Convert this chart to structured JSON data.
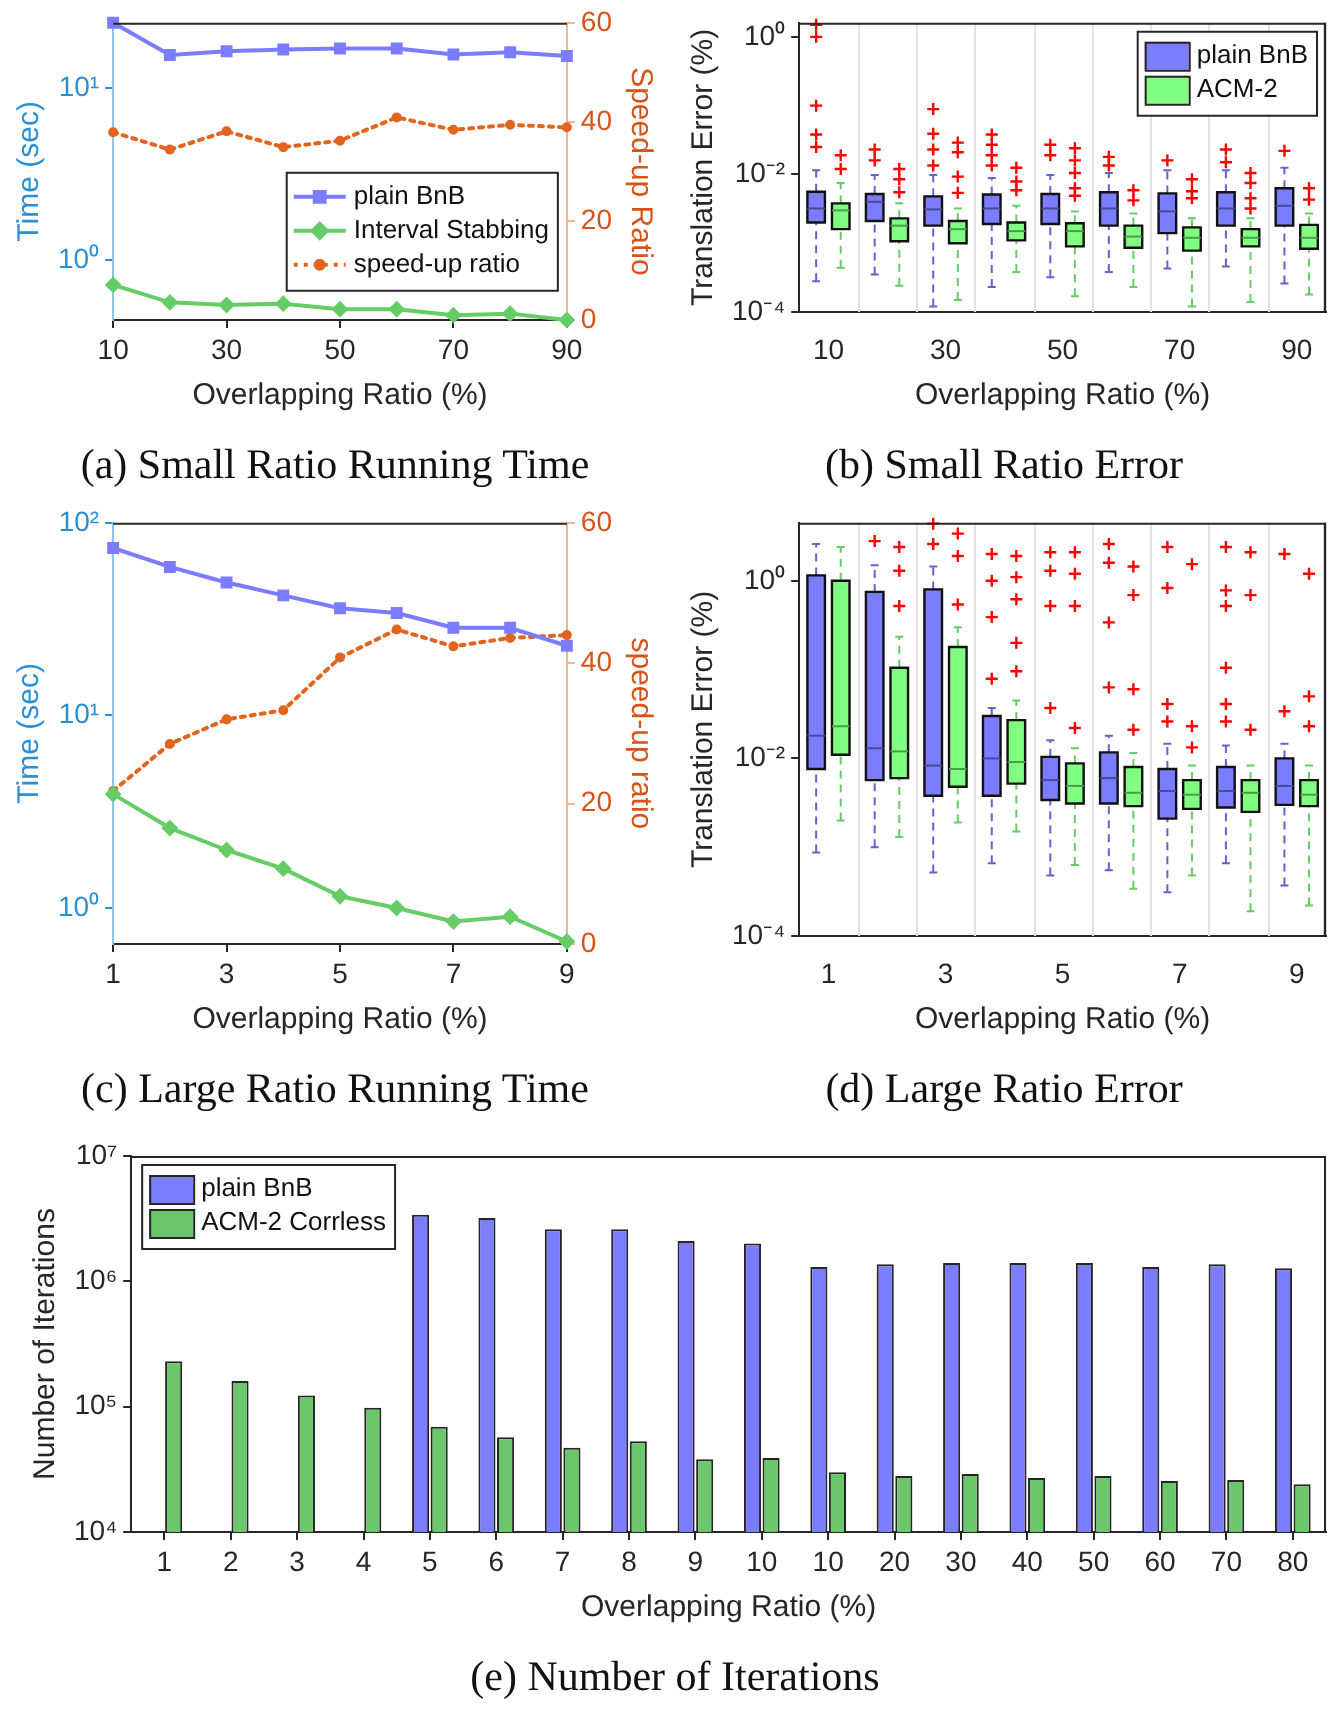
{
  "chart_data": [
    {
      "type": "line",
      "title": "(a) Small Ratio Running Time",
      "xlabel": "Overlapping Ratio (%)",
      "ylabel": "Time (sec)",
      "y2label": "Speed-up Ratio",
      "x": [
        10,
        20,
        30,
        40,
        50,
        60,
        70,
        80,
        90
      ],
      "xlim": [
        10,
        90
      ],
      "xticks": [
        10,
        30,
        50,
        70,
        90
      ],
      "log": "y",
      "ylim": [
        0.45,
        24
      ],
      "yticks": [
        {
          "value": 1,
          "label": "10⁰"
        },
        {
          "value": 10,
          "label": "10¹"
        }
      ],
      "y2lim": [
        0,
        60
      ],
      "y2ticks": [
        0,
        20,
        40,
        60
      ],
      "legend": "right",
      "series": [
        {
          "name": "plain BnB",
          "color": "#7c7cff",
          "marker": "square",
          "values": [
            24,
            15.6,
            16.4,
            16.8,
            17,
            17,
            15.7,
            16.2,
            15.4
          ]
        },
        {
          "name": "Interval Stabbing",
          "color": "#66cc66",
          "marker": "diamond",
          "values": [
            0.72,
            0.57,
            0.55,
            0.56,
            0.52,
            0.52,
            0.48,
            0.49,
            0.45
          ]
        },
        {
          "name": "speed-up ratio",
          "color": "#e2641f",
          "marker": "circle",
          "line_style": "dotted",
          "axis": "y2",
          "values": [
            37.9,
            34.4,
            38.1,
            34.9,
            36.2,
            40.9,
            38.4,
            39.4,
            38.9
          ]
        }
      ]
    },
    {
      "type": "box",
      "title": "(b) Small Ratio Error",
      "xlabel": "Overlapping Ratio (%)",
      "ylabel": "Translation Error (%)",
      "categories": [
        "10",
        null,
        "30",
        null,
        "50",
        null,
        "70",
        null,
        "90"
      ],
      "log": "y",
      "ylim": [
        0.0001,
        1.6
      ],
      "yticks": [
        {
          "value": 0.0001,
          "label": "10⁻⁴"
        },
        {
          "value": 0.01,
          "label": "10⁻²"
        },
        {
          "value": 1,
          "label": "10⁰"
        }
      ],
      "grid": "x",
      "legend": "top right",
      "series": [
        {
          "name": "plain BnB",
          "color": "#7c7cff",
          "boxes": [
            {
              "low": 0.00028,
              "q1": 0.002,
              "median": 0.0032,
              "q3": 0.0056,
              "high": 0.0115,
              "outliers": [
                1.5,
                1.0,
                0.1,
                0.038,
                0.025
              ]
            },
            {
              "low": 0.00035,
              "q1": 0.0021,
              "median": 0.004,
              "q3": 0.0052,
              "high": 0.0098,
              "outliers": [
                0.023,
                0.016
              ]
            },
            {
              "low": 0.00012,
              "q1": 0.0018,
              "median": 0.0031,
              "q3": 0.0048,
              "high": 0.0098,
              "outliers": [
                0.089,
                0.039,
                0.023,
                0.0135
              ]
            },
            {
              "low": 0.00023,
              "q1": 0.0019,
              "median": 0.0032,
              "q3": 0.0051,
              "high": 0.0089,
              "outliers": [
                0.038,
                0.027,
                0.019,
                0.0135
              ]
            },
            {
              "low": 0.00032,
              "q1": 0.0019,
              "median": 0.0032,
              "q3": 0.0052,
              "high": 0.0098,
              "outliers": [
                0.027,
                0.019
              ]
            },
            {
              "low": 0.00038,
              "q1": 0.0018,
              "median": 0.0032,
              "q3": 0.0055,
              "high": 0.0105,
              "outliers": [
                0.018,
                0.0135
              ]
            },
            {
              "low": 0.00043,
              "q1": 0.0014,
              "median": 0.0029,
              "q3": 0.0053,
              "high": 0.0115,
              "outliers": [
                0.016
              ]
            },
            {
              "low": 0.00046,
              "q1": 0.0018,
              "median": 0.0032,
              "q3": 0.0055,
              "high": 0.0115,
              "outliers": [
                0.023,
                0.015
              ]
            },
            {
              "low": 0.00026,
              "q1": 0.0018,
              "median": 0.0035,
              "q3": 0.0063,
              "high": 0.0125,
              "outliers": [
                0.022
              ]
            }
          ]
        },
        {
          "name": "ACM-2",
          "color": "#80ff80",
          "boxes": [
            {
              "low": 0.00044,
              "q1": 0.0016,
              "median": 0.003,
              "q3": 0.0038,
              "high": 0.0075,
              "outliers": [
                0.019,
                0.012
              ]
            },
            {
              "low": 0.00024,
              "q1": 0.00107,
              "median": 0.0018,
              "q3": 0.0023,
              "high": 0.0038,
              "outliers": [
                0.012,
                0.0085,
                0.0055
              ]
            },
            {
              "low": 0.00015,
              "q1": 0.001,
              "median": 0.0016,
              "q3": 0.0021,
              "high": 0.0032,
              "outliers": [
                0.029,
                0.021,
                0.0093,
                0.0054
              ]
            },
            {
              "low": 0.00038,
              "q1": 0.0011,
              "median": 0.0015,
              "q3": 0.002,
              "high": 0.0035,
              "outliers": [
                0.0125,
                0.0079,
                0.0059
              ]
            },
            {
              "low": 0.00017,
              "q1": 0.0009,
              "median": 0.0015,
              "q3": 0.00195,
              "high": 0.0029,
              "outliers": [
                0.024,
                0.016,
                0.0105,
                0.0063,
                0.0049
              ]
            },
            {
              "low": 0.00023,
              "q1": 0.00086,
              "median": 0.00125,
              "q3": 0.0018,
              "high": 0.0027,
              "outliers": [
                0.0059,
                0.0042
              ]
            },
            {
              "low": 0.00012,
              "q1": 0.00078,
              "median": 0.0012,
              "q3": 0.0017,
              "high": 0.0023,
              "outliers": [
                0.0085,
                0.0057,
                0.0045
              ]
            },
            {
              "low": 0.00014,
              "q1": 0.0009,
              "median": 0.0012,
              "q3": 0.0016,
              "high": 0.0023,
              "outliers": [
                0.0105,
                0.0075,
                0.0045,
                0.0032
              ]
            },
            {
              "low": 0.00018,
              "q1": 0.00083,
              "median": 0.0012,
              "q3": 0.00185,
              "high": 0.0027,
              "outliers": [
                0.0063,
                0.0043
              ]
            }
          ]
        }
      ]
    },
    {
      "type": "line",
      "title": "(c) Large Ratio Running Time",
      "xlabel": "Overlapping Ratio (%)",
      "ylabel": "Time (sec)",
      "y2label": "speed-up ratio",
      "x": [
        1,
        2,
        3,
        4,
        5,
        6,
        7,
        8,
        9
      ],
      "xlim": [
        1,
        9
      ],
      "xticks": [
        1,
        3,
        5,
        7,
        9
      ],
      "log": "y",
      "ylim": [
        0.65,
        100
      ],
      "yticks": [
        {
          "value": 1,
          "label": "10⁰"
        },
        {
          "value": 10,
          "label": "10¹"
        },
        {
          "value": 100,
          "label": "10²"
        }
      ],
      "y2lim": [
        0,
        60
      ],
      "y2ticks": [
        0,
        20,
        40,
        60
      ],
      "series": [
        {
          "color": "#7c7cff",
          "marker": "square",
          "values": [
            74,
            59,
            49,
            42,
            36,
            34,
            28.5,
            28.5,
            23
          ]
        },
        {
          "color": "#66cc66",
          "marker": "diamond",
          "values": [
            3.9,
            2.6,
            2.0,
            1.6,
            1.15,
            1.0,
            0.85,
            0.9,
            0.67
          ]
        },
        {
          "color": "#e2641f",
          "marker": "circle",
          "line_style": "dotted",
          "axis": "y2",
          "values": [
            21.8,
            28.5,
            32,
            33.3,
            40.8,
            44.8,
            42.4,
            43.6,
            44
          ]
        }
      ]
    },
    {
      "type": "box",
      "title": "(d) Large Ratio Error",
      "xlabel": "Overlapping Ratio (%)",
      "ylabel": "Translation Error (%)",
      "categories": [
        "1",
        null,
        "3",
        null,
        "5",
        null,
        "7",
        null,
        "9"
      ],
      "log": "y",
      "ylim": [
        0.0001,
        4.5
      ],
      "yticks": [
        {
          "value": 0.0001,
          "label": "10⁻⁴"
        },
        {
          "value": 0.01,
          "label": "10⁻²"
        },
        {
          "value": 1,
          "label": "10⁰"
        }
      ],
      "grid": "x",
      "series": [
        {
          "color": "#7c7cff",
          "boxes": [
            {
              "low": 0.00087,
              "q1": 0.0076,
              "median": 0.018,
              "q3": 1.15,
              "high": 2.6
            },
            {
              "low": 0.001,
              "q1": 0.0057,
              "median": 0.013,
              "q3": 0.75,
              "high": 1.5,
              "outliers": [
                2.8
              ]
            },
            {
              "low": 0.00052,
              "q1": 0.0038,
              "median": 0.0083,
              "q3": 0.8,
              "high": 1.45,
              "outliers": [
                4.4,
                2.6
              ]
            },
            {
              "low": 0.00066,
              "q1": 0.0038,
              "median": 0.01,
              "q3": 0.03,
              "high": 0.037,
              "outliers": [
                2.0,
                1.0,
                0.39,
                0.079
              ]
            },
            {
              "low": 0.00048,
              "q1": 0.0034,
              "median": 0.0057,
              "q3": 0.0104,
              "high": 0.016,
              "outliers": [
                2.1,
                1.3,
                0.52,
                0.037
              ]
            },
            {
              "low": 0.00055,
              "q1": 0.0031,
              "median": 0.006,
              "q3": 0.0117,
              "high": 0.018,
              "outliers": [
                2.6,
                1.6,
                0.34,
                0.063
              ]
            },
            {
              "low": 0.00031,
              "q1": 0.0021,
              "median": 0.0043,
              "q3": 0.0076,
              "high": 0.0146,
              "outliers": [
                2.4,
                0.83,
                0.041,
                0.026
              ]
            },
            {
              "low": 0.00066,
              "q1": 0.0028,
              "median": 0.0043,
              "q3": 0.008,
              "high": 0.014,
              "outliers": [
                2.4,
                0.78,
                0.52,
                0.105,
                0.041,
                0.026
              ]
            },
            {
              "low": 0.00037,
              "q1": 0.003,
              "median": 0.0049,
              "q3": 0.01,
              "high": 0.0146,
              "outliers": [
                2.0,
                0.034
              ]
            }
          ]
        },
        {
          "color": "#80ff80",
          "boxes": [
            {
              "low": 0.002,
              "q1": 0.011,
              "median": 0.023,
              "q3": 1.0,
              "high": 2.4
            },
            {
              "low": 0.0013,
              "q1": 0.006,
              "median": 0.012,
              "q3": 0.105,
              "high": 0.235,
              "outliers": [
                2.4,
                1.3,
                0.52
              ]
            },
            {
              "low": 0.0019,
              "q1": 0.0048,
              "median": 0.0076,
              "q3": 0.18,
              "high": 0.3,
              "outliers": [
                3.4,
                1.9,
                0.54
              ]
            },
            {
              "low": 0.0015,
              "q1": 0.0052,
              "median": 0.0091,
              "q3": 0.027,
              "high": 0.045,
              "outliers": [
                1.9,
                1.1,
                0.62,
                0.2,
                0.096
              ]
            },
            {
              "low": 0.00063,
              "q1": 0.0031,
              "median": 0.0049,
              "q3": 0.0088,
              "high": 0.013,
              "outliers": [
                2.1,
                1.2,
                0.52,
                0.022
              ]
            },
            {
              "low": 0.00034,
              "q1": 0.0029,
              "median": 0.0041,
              "q3": 0.008,
              "high": 0.0115,
              "outliers": [
                1.45,
                0.69,
                0.06,
                0.021
              ]
            },
            {
              "low": 0.00048,
              "q1": 0.0027,
              "median": 0.0039,
              "q3": 0.0057,
              "high": 0.0083,
              "outliers": [
                1.54,
                0.023,
                0.0133
              ]
            },
            {
              "low": 0.00019,
              "q1": 0.0025,
              "median": 0.0041,
              "q3": 0.0057,
              "high": 0.0083,
              "outliers": [
                2.1,
                0.69,
                0.021
              ]
            },
            {
              "low": 0.00022,
              "q1": 0.0029,
              "median": 0.0039,
              "q3": 0.0057,
              "high": 0.0083,
              "outliers": [
                1.2,
                0.05,
                0.023
              ]
            }
          ]
        }
      ]
    },
    {
      "type": "bar",
      "title": "(e) Number of Iterations",
      "xlabel": "Overlapping Ratio (%)",
      "ylabel": "Number of Iterations",
      "categories": [
        "1",
        "2",
        "3",
        "4",
        "5",
        "6",
        "7",
        "8",
        "9",
        "10",
        "10",
        "20",
        "30",
        "40",
        "50",
        "60",
        "70",
        "80"
      ],
      "log": "y",
      "ylim": [
        10000,
        10000000
      ],
      "yticks": [
        {
          "value": 10000,
          "label": "10⁴"
        },
        {
          "value": 100000,
          "label": "10⁵"
        },
        {
          "value": 1000000,
          "label": "10⁶"
        },
        {
          "value": 10000000,
          "label": "10⁷"
        }
      ],
      "legend": "top left",
      "series": [
        {
          "name": "plain BnB",
          "color": "#7c7cff",
          "values": [
            null,
            null,
            null,
            null,
            3400000,
            3200000,
            2600000,
            2600000,
            2100000,
            2000000,
            1300000,
            1370000,
            1400000,
            1400000,
            1400000,
            1300000,
            1370000,
            1270000
          ]
        },
        {
          "name": "ACM-2 Corrless",
          "color": "#6cc76c",
          "values": [
            230000,
            160000,
            123000,
            98000,
            69000,
            57000,
            47000,
            53000,
            38000,
            39000,
            30000,
            28000,
            29000,
            27000,
            28000,
            25500,
            26000,
            24000
          ]
        }
      ]
    }
  ]
}
